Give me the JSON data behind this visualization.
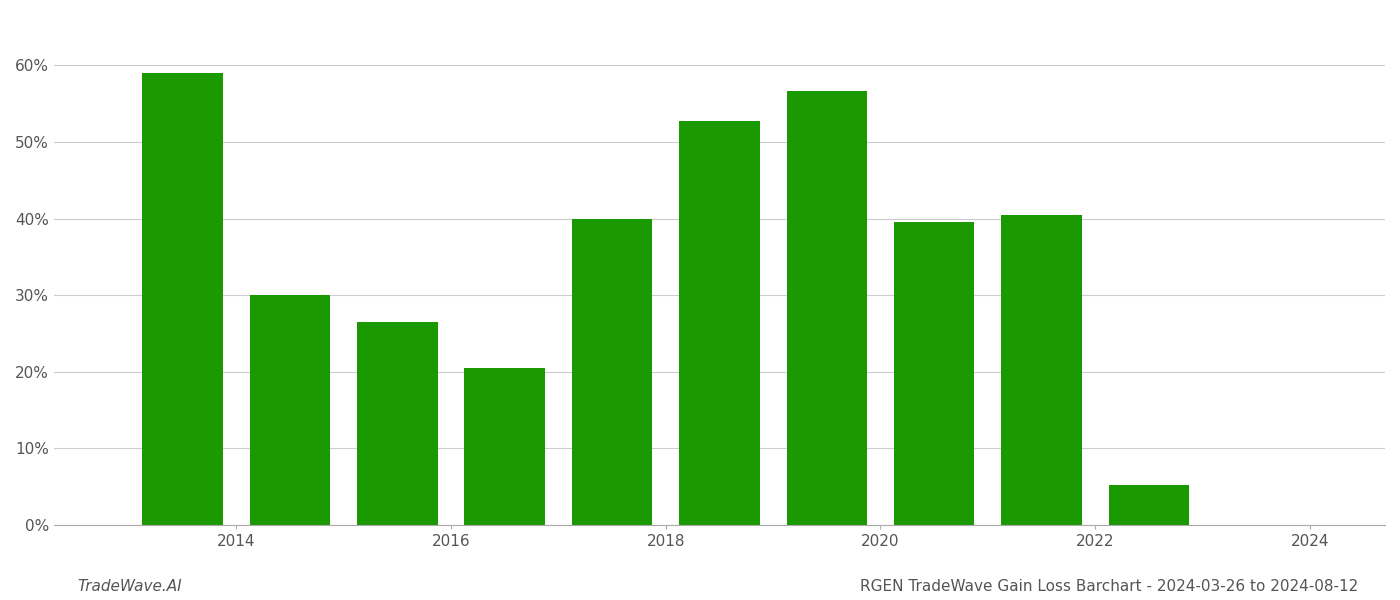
{
  "years": [
    2013,
    2014,
    2015,
    2016,
    2017,
    2018,
    2019,
    2020,
    2021,
    2022,
    2023
  ],
  "values": [
    0.59,
    0.3,
    0.265,
    0.205,
    0.4,
    0.527,
    0.567,
    0.395,
    0.405,
    0.052,
    0.0
  ],
  "bar_color": "#1a9a00",
  "background_color": "#ffffff",
  "grid_color": "#cccccc",
  "title": "RGEN TradeWave Gain Loss Barchart - 2024-03-26 to 2024-08-12",
  "watermark": "TradeWave.AI",
  "ylim": [
    0,
    0.65
  ],
  "yticks": [
    0.0,
    0.1,
    0.2,
    0.3,
    0.4,
    0.5,
    0.6
  ],
  "xtick_positions": [
    2014,
    2016,
    2018,
    2020,
    2022,
    2024
  ],
  "xtick_labels": [
    "2014",
    "2016",
    "2018",
    "2020",
    "2022",
    "2024"
  ],
  "xlim": [
    2012.3,
    2024.7
  ],
  "xlabel_fontsize": 11,
  "ylabel_fontsize": 11,
  "title_fontsize": 11,
  "watermark_fontsize": 11,
  "bar_width": 0.75
}
